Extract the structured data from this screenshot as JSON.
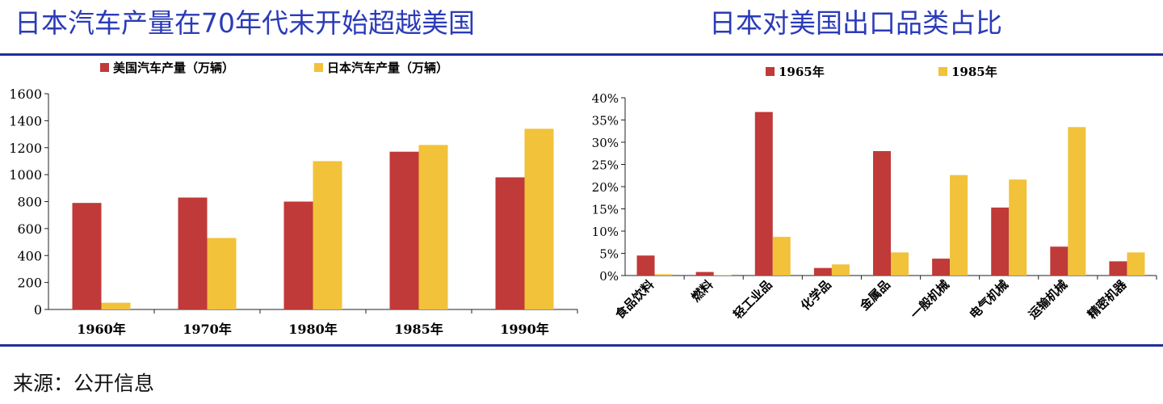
{
  "titles": {
    "left": "日本汽车产量在70年代末开始超越美国",
    "right": "日本对美国出口品类占比"
  },
  "source": "来源：公开信息",
  "colors": {
    "series_a": "#bf3a38",
    "series_b": "#f1c23a",
    "title": "#2b3bb8",
    "rule": "#1f2f9e"
  },
  "chart_data": [
    {
      "type": "bar",
      "categories": [
        "1960年",
        "1970年",
        "1980年",
        "1985年",
        "1990年"
      ],
      "series": [
        {
          "name": "美国汽车产量（万辆）",
          "values": [
            790,
            830,
            800,
            1170,
            980
          ]
        },
        {
          "name": "日本汽车产量（万辆）",
          "values": [
            50,
            530,
            1100,
            1220,
            1340
          ]
        }
      ],
      "yticks": [
        "0",
        "200",
        "400",
        "600",
        "800",
        "1000",
        "1200",
        "1400",
        "1600"
      ],
      "ylim": [
        0,
        1600
      ],
      "legend": "top",
      "grid": false
    },
    {
      "type": "bar",
      "categories": [
        "食品饮料",
        "燃料",
        "轻工业品",
        "化学品",
        "金属品",
        "一般机械",
        "电气机械",
        "运输机械",
        "精密机器"
      ],
      "series": [
        {
          "name": "1965年",
          "values": [
            4.5,
            0.8,
            36.8,
            1.7,
            28.0,
            3.8,
            15.3,
            6.5,
            3.2
          ]
        },
        {
          "name": "1985年",
          "values": [
            0.3,
            0.1,
            8.7,
            2.5,
            5.2,
            22.6,
            21.6,
            33.4,
            5.2
          ]
        }
      ],
      "yticks": [
        "0%",
        "5%",
        "10%",
        "15%",
        "20%",
        "25%",
        "30%",
        "35%",
        "40%"
      ],
      "ylim": [
        0,
        40
      ],
      "legend": "top",
      "grid": false
    }
  ]
}
